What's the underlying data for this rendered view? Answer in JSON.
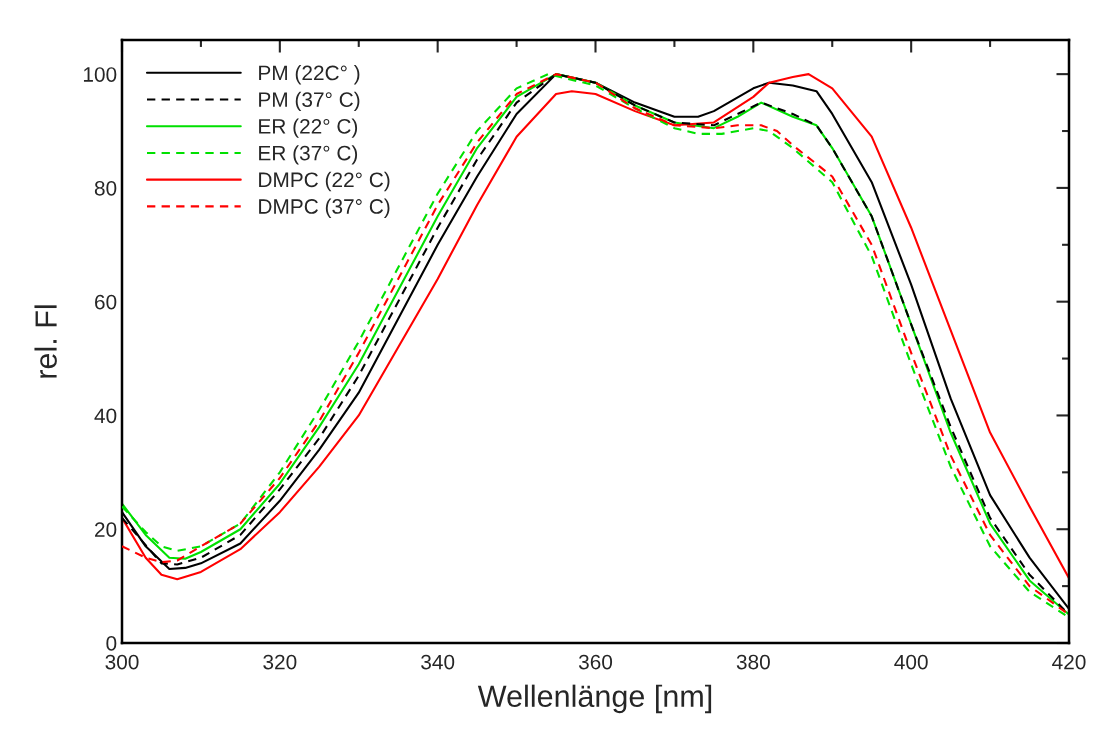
{
  "chart_data": {
    "type": "line",
    "xlabel": "Wellenlänge [nm]",
    "ylabel": "rel. Fl",
    "xlim": [
      300,
      420
    ],
    "ylim": [
      0,
      106
    ],
    "xticks": [
      300,
      {
        "value": 310,
        "label": null
      },
      320,
      {
        "value": 330,
        "label": null
      },
      340,
      {
        "value": 350,
        "label": null
      },
      360,
      {
        "value": 370,
        "label": null
      },
      380,
      {
        "value": 390,
        "label": null
      },
      400,
      {
        "value": 410,
        "label": null
      },
      420
    ],
    "yticks": [
      0,
      {
        "value": 10,
        "label": null
      },
      20,
      {
        "value": 30,
        "label": null
      },
      40,
      {
        "value": 50,
        "label": null
      },
      60,
      {
        "value": 70,
        "label": null
      },
      80,
      {
        "value": 90,
        "label": null
      },
      100
    ],
    "grid": false,
    "legend": "top left",
    "marker": "none",
    "series": [
      {
        "name": "PM (22C° )",
        "color": "#000000",
        "line_style": "solid",
        "x": [
          300,
          303,
          306,
          308,
          310,
          315,
          320,
          325,
          330,
          335,
          340,
          345,
          350,
          355,
          360,
          365,
          370,
          373,
          375,
          380,
          382,
          385,
          388,
          390,
          395,
          400,
          405,
          410,
          415,
          420
        ],
        "values": [
          23,
          17,
          13,
          13.2,
          14,
          17.5,
          25,
          34,
          44,
          57,
          70,
          82,
          93,
          100,
          98.5,
          95,
          92.5,
          92.5,
          93.5,
          97.5,
          98.5,
          98,
          97,
          93,
          81,
          63,
          43,
          26,
          15,
          6
        ]
      },
      {
        "name": "PM (37° C)",
        "color": "#000000",
        "line_style": "dashed",
        "x": [
          300,
          305,
          307,
          310,
          315,
          320,
          325,
          330,
          335,
          340,
          345,
          350,
          355,
          360,
          365,
          370,
          375,
          378,
          381,
          385,
          388,
          390,
          395,
          400,
          405,
          410,
          415,
          420
        ],
        "values": [
          22,
          14,
          13.8,
          15,
          19,
          27,
          36,
          47,
          60,
          73,
          85,
          95,
          100,
          98.5,
          94.5,
          91.5,
          91,
          93,
          95,
          93,
          91,
          87,
          75,
          56,
          38,
          22,
          12,
          5
        ]
      },
      {
        "name": "ER (22° C)",
        "color": "#00e000",
        "line_style": "solid",
        "x": [
          300,
          303,
          306,
          308,
          310,
          315,
          320,
          325,
          330,
          335,
          340,
          345,
          350,
          355,
          360,
          365,
          370,
          375,
          378,
          381,
          385,
          388,
          390,
          395,
          400,
          405,
          410,
          415,
          420
        ],
        "values": [
          24.5,
          19,
          15,
          14.8,
          16,
          20,
          28,
          38,
          49,
          62,
          75,
          87,
          96,
          100,
          98.5,
          94.5,
          91.5,
          90.5,
          92.5,
          95,
          92.5,
          91,
          87,
          75,
          56,
          37,
          21,
          11,
          5
        ]
      },
      {
        "name": "ER (37° C)",
        "color": "#00e000",
        "line_style": "dashed",
        "x": [
          300,
          303,
          305,
          307,
          310,
          315,
          320,
          325,
          330,
          335,
          340,
          345,
          350,
          354,
          360,
          365,
          370,
          373,
          376,
          380,
          382,
          385,
          390,
          395,
          400,
          405,
          410,
          415,
          420
        ],
        "values": [
          24,
          19.5,
          17,
          16.2,
          17,
          21,
          30,
          41,
          53,
          66,
          79,
          90,
          97.5,
          100,
          98,
          94,
          90.5,
          89.5,
          89.5,
          90.5,
          90,
          87,
          81,
          68,
          49,
          31,
          17,
          9,
          4.5
        ]
      },
      {
        "name": "DMPC (22° C)",
        "color": "#ff0000",
        "line_style": "solid",
        "x": [
          300,
          303,
          305,
          307,
          310,
          315,
          320,
          325,
          330,
          335,
          340,
          345,
          350,
          355,
          357,
          360,
          365,
          370,
          375,
          380,
          382,
          385,
          387,
          390,
          395,
          400,
          405,
          410,
          415,
          420
        ],
        "values": [
          22,
          15,
          12,
          11.2,
          12.5,
          16.5,
          23,
          31,
          40,
          52,
          64,
          77,
          89,
          96.5,
          97,
          96.5,
          93.5,
          91,
          91.5,
          96,
          98.5,
          99.5,
          100,
          97.5,
          89,
          73,
          55,
          37,
          24,
          11.4
        ]
      },
      {
        "name": "DMPC (37° C)",
        "color": "#ff0000",
        "line_style": "dashed",
        "x": [
          300,
          303,
          305,
          307,
          310,
          315,
          320,
          325,
          330,
          335,
          340,
          345,
          350,
          355,
          360,
          365,
          370,
          375,
          378,
          381,
          383,
          385,
          390,
          395,
          400,
          405,
          410,
          415,
          420
        ],
        "values": [
          17,
          15,
          14.2,
          14.5,
          17,
          21,
          29,
          39,
          51,
          64,
          77,
          88,
          96.5,
          100,
          98.5,
          94,
          91,
          90.5,
          91,
          91,
          90,
          87.5,
          82,
          70,
          51,
          33,
          19,
          10,
          5
        ]
      }
    ]
  }
}
